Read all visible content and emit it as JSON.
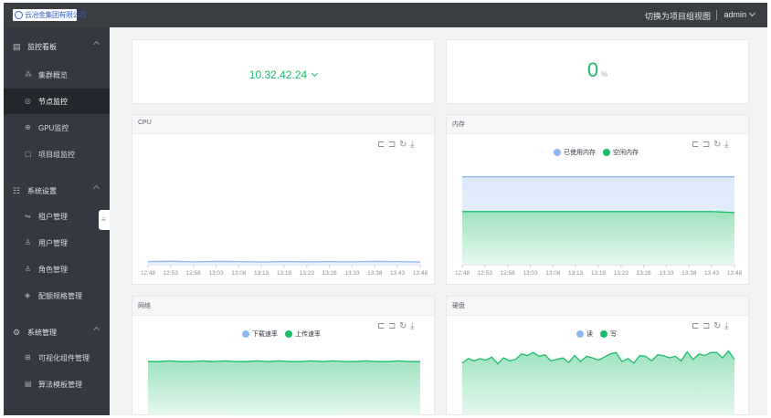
{
  "header": {
    "logo_text": "云冶金集团有限公司",
    "switch_view_label": "切换为项目组视图",
    "user_name": "admin"
  },
  "sidebar": {
    "groups": [
      {
        "label": "监控看板",
        "icon": "dashboard-icon",
        "items": [
          {
            "label": "集群概览",
            "icon": "cluster-icon",
            "active": false
          },
          {
            "label": "节点监控",
            "icon": "node-icon",
            "active": true
          },
          {
            "label": "GPU监控",
            "icon": "gpu-icon",
            "active": false
          },
          {
            "label": "项目组监控",
            "icon": "project-icon",
            "active": false
          }
        ]
      },
      {
        "label": "系统设置",
        "icon": "settings-sliders-icon",
        "items": [
          {
            "label": "租户管理",
            "icon": "tenant-icon",
            "active": false
          },
          {
            "label": "用户管理",
            "icon": "user-icon",
            "active": false
          },
          {
            "label": "角色管理",
            "icon": "role-icon",
            "active": false
          },
          {
            "label": "配额规格管理",
            "icon": "quota-icon",
            "active": false
          }
        ]
      },
      {
        "label": "系统管理",
        "icon": "gear-icon",
        "items": [
          {
            "label": "可视化组件管理",
            "icon": "component-icon",
            "active": false
          },
          {
            "label": "算法模板管理",
            "icon": "template-icon",
            "active": false
          }
        ]
      }
    ]
  },
  "summary": {
    "node_ip": "10.32.42.24",
    "value": "0",
    "unit": "%"
  },
  "toolbox_icons": [
    "zoom-icon",
    "zoom-reset-icon",
    "restore-icon",
    "download-icon"
  ],
  "colors": {
    "accent": "#1bbc6a",
    "series_blue": "#8cb9ee",
    "series_green": "#1bbc6a",
    "sidebar_bg": "#343840",
    "topbar_bg": "#3a3d42"
  },
  "charts": {
    "cpu": {
      "title": "CPU"
    },
    "memory": {
      "title": "内存",
      "legend": [
        "已使用内存",
        "空闲内存"
      ]
    },
    "network": {
      "title": "网络",
      "legend": [
        "下载速率",
        "上传速率"
      ]
    },
    "disk": {
      "title": "硬盘",
      "legend": [
        "读",
        "写"
      ]
    }
  },
  "chart_data": [
    {
      "type": "line",
      "title": "CPU",
      "categories": [
        "12:48",
        "12:53",
        "12:58",
        "13:03",
        "13:08",
        "13:13",
        "13:18",
        "13:23",
        "13:28",
        "13:33",
        "13:38",
        "13:43",
        "13:48"
      ],
      "series": [
        {
          "color": "#8cb9ee",
          "values": [
            0.3,
            0.35,
            0.28,
            0.32,
            0.3,
            0.27,
            0.31,
            0.29,
            0.3,
            0.28,
            0.32,
            0.3,
            0.27
          ]
        }
      ],
      "ylim": [
        0,
        10
      ],
      "area": true
    },
    {
      "type": "area",
      "title": "内存",
      "categories": [
        "12:48",
        "12:53",
        "12:58",
        "13:03",
        "13:08",
        "13:13",
        "13:18",
        "13:23",
        "13:28",
        "13:33",
        "13:38",
        "13:43",
        "13:48"
      ],
      "series": [
        {
          "name": "已使用内存",
          "color": "#8cb9ee",
          "values": [
            86,
            86,
            86,
            86,
            86,
            86,
            86,
            86,
            86,
            86,
            86,
            86,
            86
          ]
        },
        {
          "name": "空闲内存",
          "color": "#1bbc6a",
          "values": [
            52,
            52,
            52,
            52,
            52,
            52,
            52,
            52,
            52,
            52,
            52,
            52,
            51
          ]
        }
      ],
      "ylim": [
        0,
        100
      ]
    },
    {
      "type": "area",
      "title": "网络",
      "series": [
        {
          "name": "下载速率",
          "color": "#8cb9ee",
          "values": []
        },
        {
          "name": "上传速率",
          "color": "#1bbc6a",
          "values": [
            72,
            72,
            73,
            72,
            72,
            73,
            72,
            73,
            72,
            72,
            73,
            72,
            73,
            72,
            72,
            73,
            72,
            73,
            72,
            72,
            73,
            72,
            72,
            73,
            72,
            72
          ]
        }
      ],
      "ylim": [
        0,
        100
      ]
    },
    {
      "type": "area",
      "title": "硬盘",
      "series": [
        {
          "name": "读",
          "color": "#8cb9ee",
          "values": []
        },
        {
          "name": "写",
          "color": "#1bbc6a",
          "values": [
            70,
            76,
            73,
            76,
            74,
            78,
            69,
            77,
            73,
            75,
            82,
            80,
            84,
            79,
            81,
            73,
            75,
            77,
            71,
            80,
            72,
            79,
            77,
            74,
            78,
            82,
            84,
            72,
            76,
            70,
            80,
            79,
            73,
            81,
            80,
            77,
            79,
            73,
            85,
            75,
            82,
            80,
            84,
            84,
            77,
            86,
            75
          ]
        }
      ],
      "ylim": [
        0,
        100
      ]
    }
  ]
}
